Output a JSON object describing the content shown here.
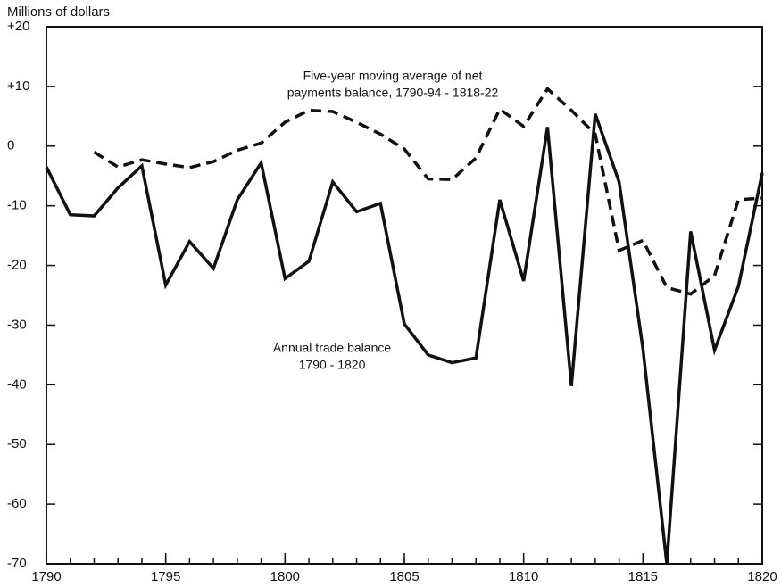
{
  "chart_data": {
    "type": "line",
    "y_label": "Millions of dollars",
    "xlim": [
      1790,
      1820
    ],
    "xticks": [
      1790,
      1795,
      1800,
      1805,
      1810,
      1815,
      1820
    ],
    "ylim": [
      -70,
      20
    ],
    "yticks": [
      {
        "value": 20,
        "label": "+20"
      },
      {
        "value": 10,
        "label": "+10"
      },
      0,
      -10,
      -20,
      -30,
      -40,
      -50,
      -60,
      -70
    ],
    "series": [
      {
        "color": "#111111",
        "linestyle": "solid",
        "x": [
          1790,
          1791,
          1792,
          1793,
          1794,
          1795,
          1796,
          1797,
          1798,
          1799,
          1800,
          1801,
          1802,
          1803,
          1804,
          1805,
          1806,
          1807,
          1808,
          1809,
          1810,
          1811,
          1812,
          1813,
          1814,
          1815,
          1816,
          1817,
          1818,
          1819,
          1820
        ],
        "values": [
          -3.5,
          -11.5,
          -11.7,
          -7,
          -3.3,
          -23.3,
          -16,
          -20.5,
          -9,
          -2.8,
          -22.2,
          -19.3,
          -6,
          -11,
          -9.6,
          -29.8,
          -35,
          -36.3,
          -35.5,
          -9,
          -22.6,
          3.2,
          -40.2,
          5.4,
          -6,
          -34,
          -70,
          -14.3,
          -34.2,
          -23.5,
          -4.5
        ]
      },
      {
        "color": "#111111",
        "linestyle": "dashed",
        "x": [
          1792,
          1793,
          1794,
          1795,
          1796,
          1797,
          1798,
          1799,
          1800,
          1801,
          1802,
          1803,
          1804,
          1805,
          1806,
          1807,
          1808,
          1809,
          1810,
          1811,
          1812,
          1813,
          1814,
          1815,
          1816,
          1817,
          1818,
          1819,
          1820
        ],
        "values": [
          -1,
          -3.5,
          -2.3,
          -3,
          -3.6,
          -2.6,
          -0.7,
          0.5,
          4,
          6,
          5.8,
          4,
          2,
          -0.5,
          -5.5,
          -5.6,
          -2,
          6.2,
          3.3,
          9.6,
          6,
          2,
          -17.5,
          -15.8,
          -23.7,
          -24.8,
          -21.7,
          -9,
          -8.7
        ]
      }
    ],
    "annotations": [
      {
        "lines": [
          "Five-year moving average of net",
          "payments balance, 1790-94 - 1818-22"
        ]
      },
      {
        "lines": [
          "Annual trade balance",
          "1790 - 1820"
        ]
      }
    ]
  }
}
